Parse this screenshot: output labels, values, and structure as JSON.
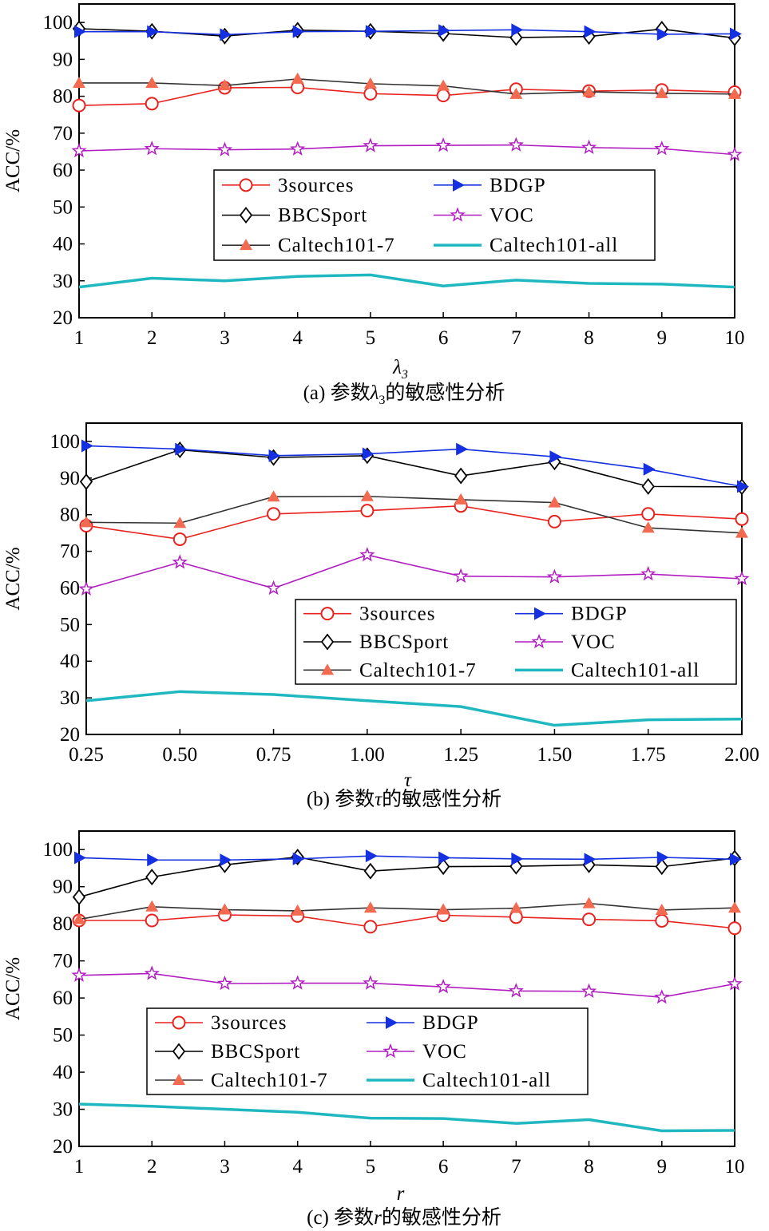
{
  "colors": {
    "3sources": "#e8231f",
    "BBCSport": "#000000",
    "Caltech101-7": "#333333",
    "Caltech101-7_marker": "#f26a50",
    "BDGP": "#1530e0",
    "VOC": "#b01ec0",
    "Caltech101-all": "#20b8c0"
  },
  "chart_data": [
    {
      "type": "line",
      "caption": "(a) 参数λ3的敏感性分析",
      "caption_parts": {
        "prefix": "(a) 参数",
        "symbol": "λ",
        "subscript": "3",
        "suffix": "的敏感性分析"
      },
      "xlabel": {
        "symbol": "λ",
        "subscript": "3"
      },
      "ylabel": "ACC/%",
      "x": [
        1,
        2,
        3,
        4,
        5,
        6,
        7,
        8,
        9,
        10
      ],
      "x_tick_labels": [
        "1",
        "2",
        "3",
        "4",
        "5",
        "6",
        "7",
        "8",
        "9",
        "10"
      ],
      "xlim": [
        1,
        10
      ],
      "ylim": [
        20,
        105
      ],
      "y_ticks": [
        20,
        30,
        40,
        50,
        60,
        70,
        80,
        90,
        100
      ],
      "legend_placement": "center",
      "series": [
        {
          "name": "3sources",
          "marker": "circle",
          "values": [
            77.5,
            78.0,
            82.3,
            82.4,
            80.7,
            80.2,
            81.9,
            81.4,
            81.7,
            81.1
          ]
        },
        {
          "name": "BBCSport",
          "marker": "diamond",
          "values": [
            98.3,
            97.6,
            96.3,
            97.9,
            97.6,
            97.0,
            95.9,
            96.2,
            98.2,
            95.8
          ]
        },
        {
          "name": "Caltech101-7",
          "marker": "triangle",
          "values": [
            83.6,
            83.6,
            82.9,
            84.7,
            83.4,
            82.8,
            80.6,
            81.2,
            80.8,
            80.6
          ]
        },
        {
          "name": "BDGP",
          "marker": "triangle-right",
          "values": [
            97.5,
            97.5,
            96.7,
            97.5,
            97.6,
            97.8,
            98.0,
            97.5,
            96.8,
            96.9
          ]
        },
        {
          "name": "VOC",
          "marker": "star",
          "values": [
            65.2,
            65.8,
            65.5,
            65.7,
            66.6,
            66.7,
            66.8,
            66.1,
            65.8,
            64.2
          ]
        },
        {
          "name": "Caltech101-all",
          "marker": "none",
          "values": [
            28.3,
            30.7,
            30.0,
            31.2,
            31.6,
            28.6,
            30.2,
            29.3,
            29.1,
            28.3
          ]
        }
      ]
    },
    {
      "type": "line",
      "caption": "(b) 参数τ的敏感性分析",
      "caption_parts": {
        "prefix": "(b) 参数",
        "symbol": "τ",
        "subscript": "",
        "suffix": "的敏感性分析"
      },
      "xlabel": {
        "symbol": "τ",
        "subscript": ""
      },
      "ylabel": "ACC/%",
      "x": [
        0.25,
        0.5,
        0.75,
        1.0,
        1.25,
        1.5,
        1.75,
        2.0
      ],
      "x_tick_labels": [
        "0.25",
        "0.50",
        "0.75",
        "1.00",
        "1.25",
        "1.50",
        "1.75",
        "2.00"
      ],
      "xlim": [
        0.25,
        2.0
      ],
      "ylim": [
        20,
        105
      ],
      "y_ticks": [
        20,
        30,
        40,
        50,
        60,
        70,
        80,
        90,
        100
      ],
      "legend_placement": "lower-right",
      "series": [
        {
          "name": "3sources",
          "marker": "circle",
          "values": [
            77.0,
            73.3,
            80.2,
            81.1,
            82.4,
            78.1,
            80.2,
            78.8
          ]
        },
        {
          "name": "BBCSport",
          "marker": "diamond",
          "values": [
            89.0,
            97.7,
            95.6,
            96.1,
            90.6,
            94.4,
            87.7,
            87.6
          ]
        },
        {
          "name": "Caltech101-7",
          "marker": "triangle",
          "values": [
            77.9,
            77.7,
            84.9,
            85.0,
            84.1,
            83.3,
            76.4,
            75.0
          ]
        },
        {
          "name": "BDGP",
          "marker": "triangle-right",
          "values": [
            98.8,
            97.9,
            96.1,
            96.6,
            97.9,
            95.8,
            92.4,
            87.7
          ]
        },
        {
          "name": "VOC",
          "marker": "star",
          "values": [
            59.7,
            67.0,
            59.9,
            69.0,
            63.2,
            63.0,
            63.8,
            62.5
          ]
        },
        {
          "name": "Caltech101-all",
          "marker": "none",
          "values": [
            29.2,
            31.7,
            30.9,
            29.2,
            27.6,
            22.5,
            24.0,
            24.2
          ]
        }
      ]
    },
    {
      "type": "line",
      "caption": "(c) 参数r的敏感性分析",
      "caption_parts": {
        "prefix": "(c) 参数",
        "symbol": "r",
        "subscript": "",
        "suffix": "的敏感性分析"
      },
      "xlabel": {
        "symbol": "r",
        "subscript": ""
      },
      "ylabel": "ACC/%",
      "x": [
        1,
        2,
        3,
        4,
        5,
        6,
        7,
        8,
        9,
        10
      ],
      "x_tick_labels": [
        "1",
        "2",
        "3",
        "4",
        "5",
        "6",
        "7",
        "8",
        "9",
        "10"
      ],
      "xlim": [
        1,
        10
      ],
      "ylim": [
        20,
        105
      ],
      "y_ticks": [
        20,
        30,
        40,
        50,
        60,
        70,
        80,
        90,
        100
      ],
      "legend_placement": "center-left",
      "series": [
        {
          "name": "3sources",
          "marker": "circle",
          "values": [
            80.9,
            80.9,
            82.4,
            82.1,
            79.2,
            82.3,
            81.8,
            81.2,
            80.8,
            78.8
          ]
        },
        {
          "name": "BBCSport",
          "marker": "diamond",
          "values": [
            87.2,
            92.6,
            95.9,
            98.0,
            94.2,
            95.4,
            95.5,
            95.9,
            95.4,
            97.7
          ]
        },
        {
          "name": "Caltech101-7",
          "marker": "triangle",
          "values": [
            81.2,
            84.6,
            83.8,
            83.5,
            84.3,
            83.8,
            84.2,
            85.5,
            83.7,
            84.3
          ]
        },
        {
          "name": "BDGP",
          "marker": "triangle-right",
          "values": [
            97.8,
            97.2,
            97.2,
            97.5,
            98.3,
            97.8,
            97.5,
            97.4,
            97.9,
            97.4
          ]
        },
        {
          "name": "VOC",
          "marker": "star",
          "values": [
            66.1,
            66.6,
            63.9,
            64.0,
            64.0,
            63.0,
            61.9,
            61.8,
            60.2,
            63.8
          ]
        },
        {
          "name": "Caltech101-all",
          "marker": "none",
          "values": [
            31.4,
            30.8,
            30.0,
            29.2,
            27.6,
            27.5,
            26.2,
            27.2,
            24.2,
            24.3
          ]
        }
      ]
    }
  ]
}
